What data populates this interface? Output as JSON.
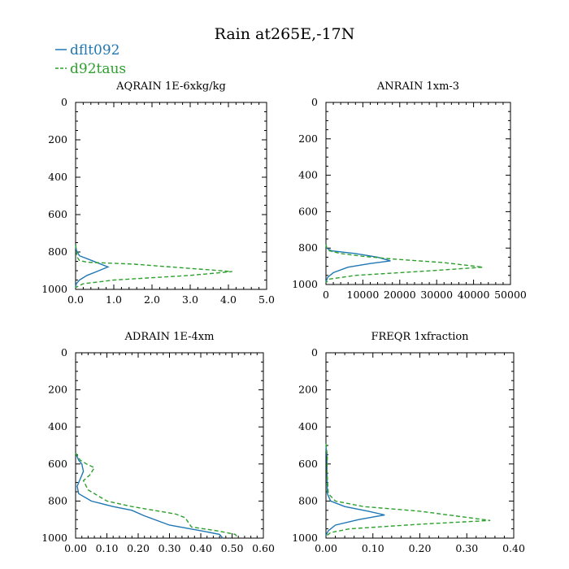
{
  "figure_title": "Rain at265E,-17N",
  "colors": {
    "dflt092": "#1f77b4",
    "d92taus": "#2ca02c"
  },
  "legend": [
    {
      "name": "dflt092",
      "style": "solid"
    },
    {
      "name": "d92taus",
      "style": "dashed"
    }
  ],
  "chart_data": [
    {
      "type": "line",
      "title": "AQRAIN 1E-6xkg/kg",
      "xlim": [
        0,
        5.0
      ],
      "ylim": [
        1000,
        0
      ],
      "xticks": [
        0.0,
        1.0,
        2.0,
        3.0,
        4.0,
        5.0
      ],
      "xtick_labels": [
        "0.0",
        "1.0",
        "2.0",
        "3.0",
        "4.0",
        "5.0"
      ],
      "yticks": [
        0,
        200,
        400,
        600,
        800,
        1000
      ],
      "ytick_labels": [
        "0",
        "200",
        "400",
        "600",
        "800",
        "1000"
      ],
      "xlabel": "",
      "ylabel": "",
      "grid": false,
      "series": [
        {
          "name": "dflt092",
          "x": [
            0,
            0.02,
            0.1,
            0.35,
            0.6,
            0.85,
            0.55,
            0.3,
            0.1,
            0.02,
            0
          ],
          "y": [
            760,
            790,
            820,
            840,
            860,
            880,
            905,
            925,
            950,
            970,
            990
          ]
        },
        {
          "name": "d92taus",
          "x": [
            0,
            0.02,
            0.05,
            0.1,
            0.3,
            1.5,
            4.1,
            3.0,
            1.0,
            0.2,
            0
          ],
          "y": [
            760,
            800,
            830,
            845,
            855,
            865,
            905,
            925,
            950,
            970,
            990
          ]
        }
      ]
    },
    {
      "type": "line",
      "title": "ANRAIN 1xm-3",
      "xlim": [
        0,
        50000
      ],
      "ylim": [
        1000,
        0
      ],
      "xticks": [
        0,
        10000,
        20000,
        30000,
        40000,
        50000
      ],
      "xtick_labels": [
        "0",
        "10000",
        "20000",
        "30000",
        "40000",
        "50000"
      ],
      "yticks": [
        0,
        200,
        400,
        600,
        800,
        1000
      ],
      "ytick_labels": [
        "0",
        "200",
        "400",
        "600",
        "800",
        "1000"
      ],
      "xlabel": "",
      "ylabel": "",
      "grid": false,
      "series": [
        {
          "name": "dflt092",
          "x": [
            0,
            200,
            1500,
            8000,
            14000,
            17500,
            12000,
            6000,
            2000,
            500,
            0
          ],
          "y": [
            780,
            800,
            815,
            830,
            850,
            870,
            885,
            905,
            935,
            960,
            985
          ]
        },
        {
          "name": "d92taus",
          "x": [
            0,
            200,
            1000,
            4000,
            10000,
            18000,
            32000,
            42500,
            28000,
            8000,
            1000,
            0
          ],
          "y": [
            780,
            800,
            815,
            830,
            845,
            860,
            880,
            905,
            925,
            950,
            970,
            990
          ]
        }
      ]
    },
    {
      "type": "line",
      "title": "ADRAIN 1E-4xm",
      "xlim": [
        0,
        0.6
      ],
      "ylim": [
        1000,
        0
      ],
      "xticks": [
        0.0,
        0.1,
        0.2,
        0.3,
        0.4,
        0.5,
        0.6
      ],
      "xtick_labels": [
        "0.00",
        "0.10",
        "0.20",
        "0.30",
        "0.40",
        "0.50",
        "0.60"
      ],
      "yticks": [
        0,
        200,
        400,
        600,
        800,
        1000
      ],
      "ytick_labels": [
        "0",
        "200",
        "400",
        "600",
        "800",
        "1000"
      ],
      "xlabel": "",
      "ylabel": "",
      "grid": false,
      "series": [
        {
          "name": "dflt092",
          "x": [
            0,
            0.01,
            0.02,
            0.025,
            0.015,
            0.005,
            0.01,
            0.05,
            0.12,
            0.18,
            0.22,
            0.3,
            0.4,
            0.46,
            0.47
          ],
          "y": [
            540,
            580,
            600,
            640,
            680,
            720,
            760,
            800,
            830,
            850,
            880,
            930,
            960,
            980,
            1000
          ]
        },
        {
          "name": "d92taus",
          "x": [
            0,
            0.015,
            0.035,
            0.06,
            0.045,
            0.025,
            0.04,
            0.1,
            0.18,
            0.25,
            0.32,
            0.35,
            0.37,
            0.45,
            0.51,
            0.52
          ],
          "y": [
            540,
            580,
            600,
            620,
            660,
            690,
            740,
            800,
            830,
            850,
            870,
            890,
            940,
            960,
            980,
            1000
          ]
        }
      ]
    },
    {
      "type": "line",
      "title": "FREQR 1xfraction",
      "xlim": [
        0,
        0.4
      ],
      "ylim": [
        1000,
        0
      ],
      "xticks": [
        0.0,
        0.1,
        0.2,
        0.3,
        0.4
      ],
      "xtick_labels": [
        "0.00",
        "0.10",
        "0.20",
        "0.30",
        "0.40"
      ],
      "yticks": [
        0,
        200,
        400,
        600,
        800,
        1000
      ],
      "ytick_labels": [
        "0",
        "200",
        "400",
        "600",
        "800",
        "1000"
      ],
      "xlabel": "",
      "ylabel": "",
      "grid": false,
      "series": [
        {
          "name": "dflt092",
          "x": [
            0,
            0.002,
            0.002,
            0.003,
            0.01,
            0.04,
            0.09,
            0.125,
            0.07,
            0.02,
            0.005,
            0
          ],
          "y": [
            500,
            560,
            640,
            760,
            800,
            830,
            855,
            875,
            900,
            930,
            960,
            985
          ]
        },
        {
          "name": "d92taus",
          "x": [
            0,
            0.003,
            0.002,
            0.005,
            0.02,
            0.08,
            0.2,
            0.35,
            0.2,
            0.05,
            0.01,
            0
          ],
          "y": [
            490,
            560,
            640,
            760,
            800,
            830,
            855,
            905,
            925,
            950,
            970,
            990
          ]
        }
      ]
    }
  ]
}
